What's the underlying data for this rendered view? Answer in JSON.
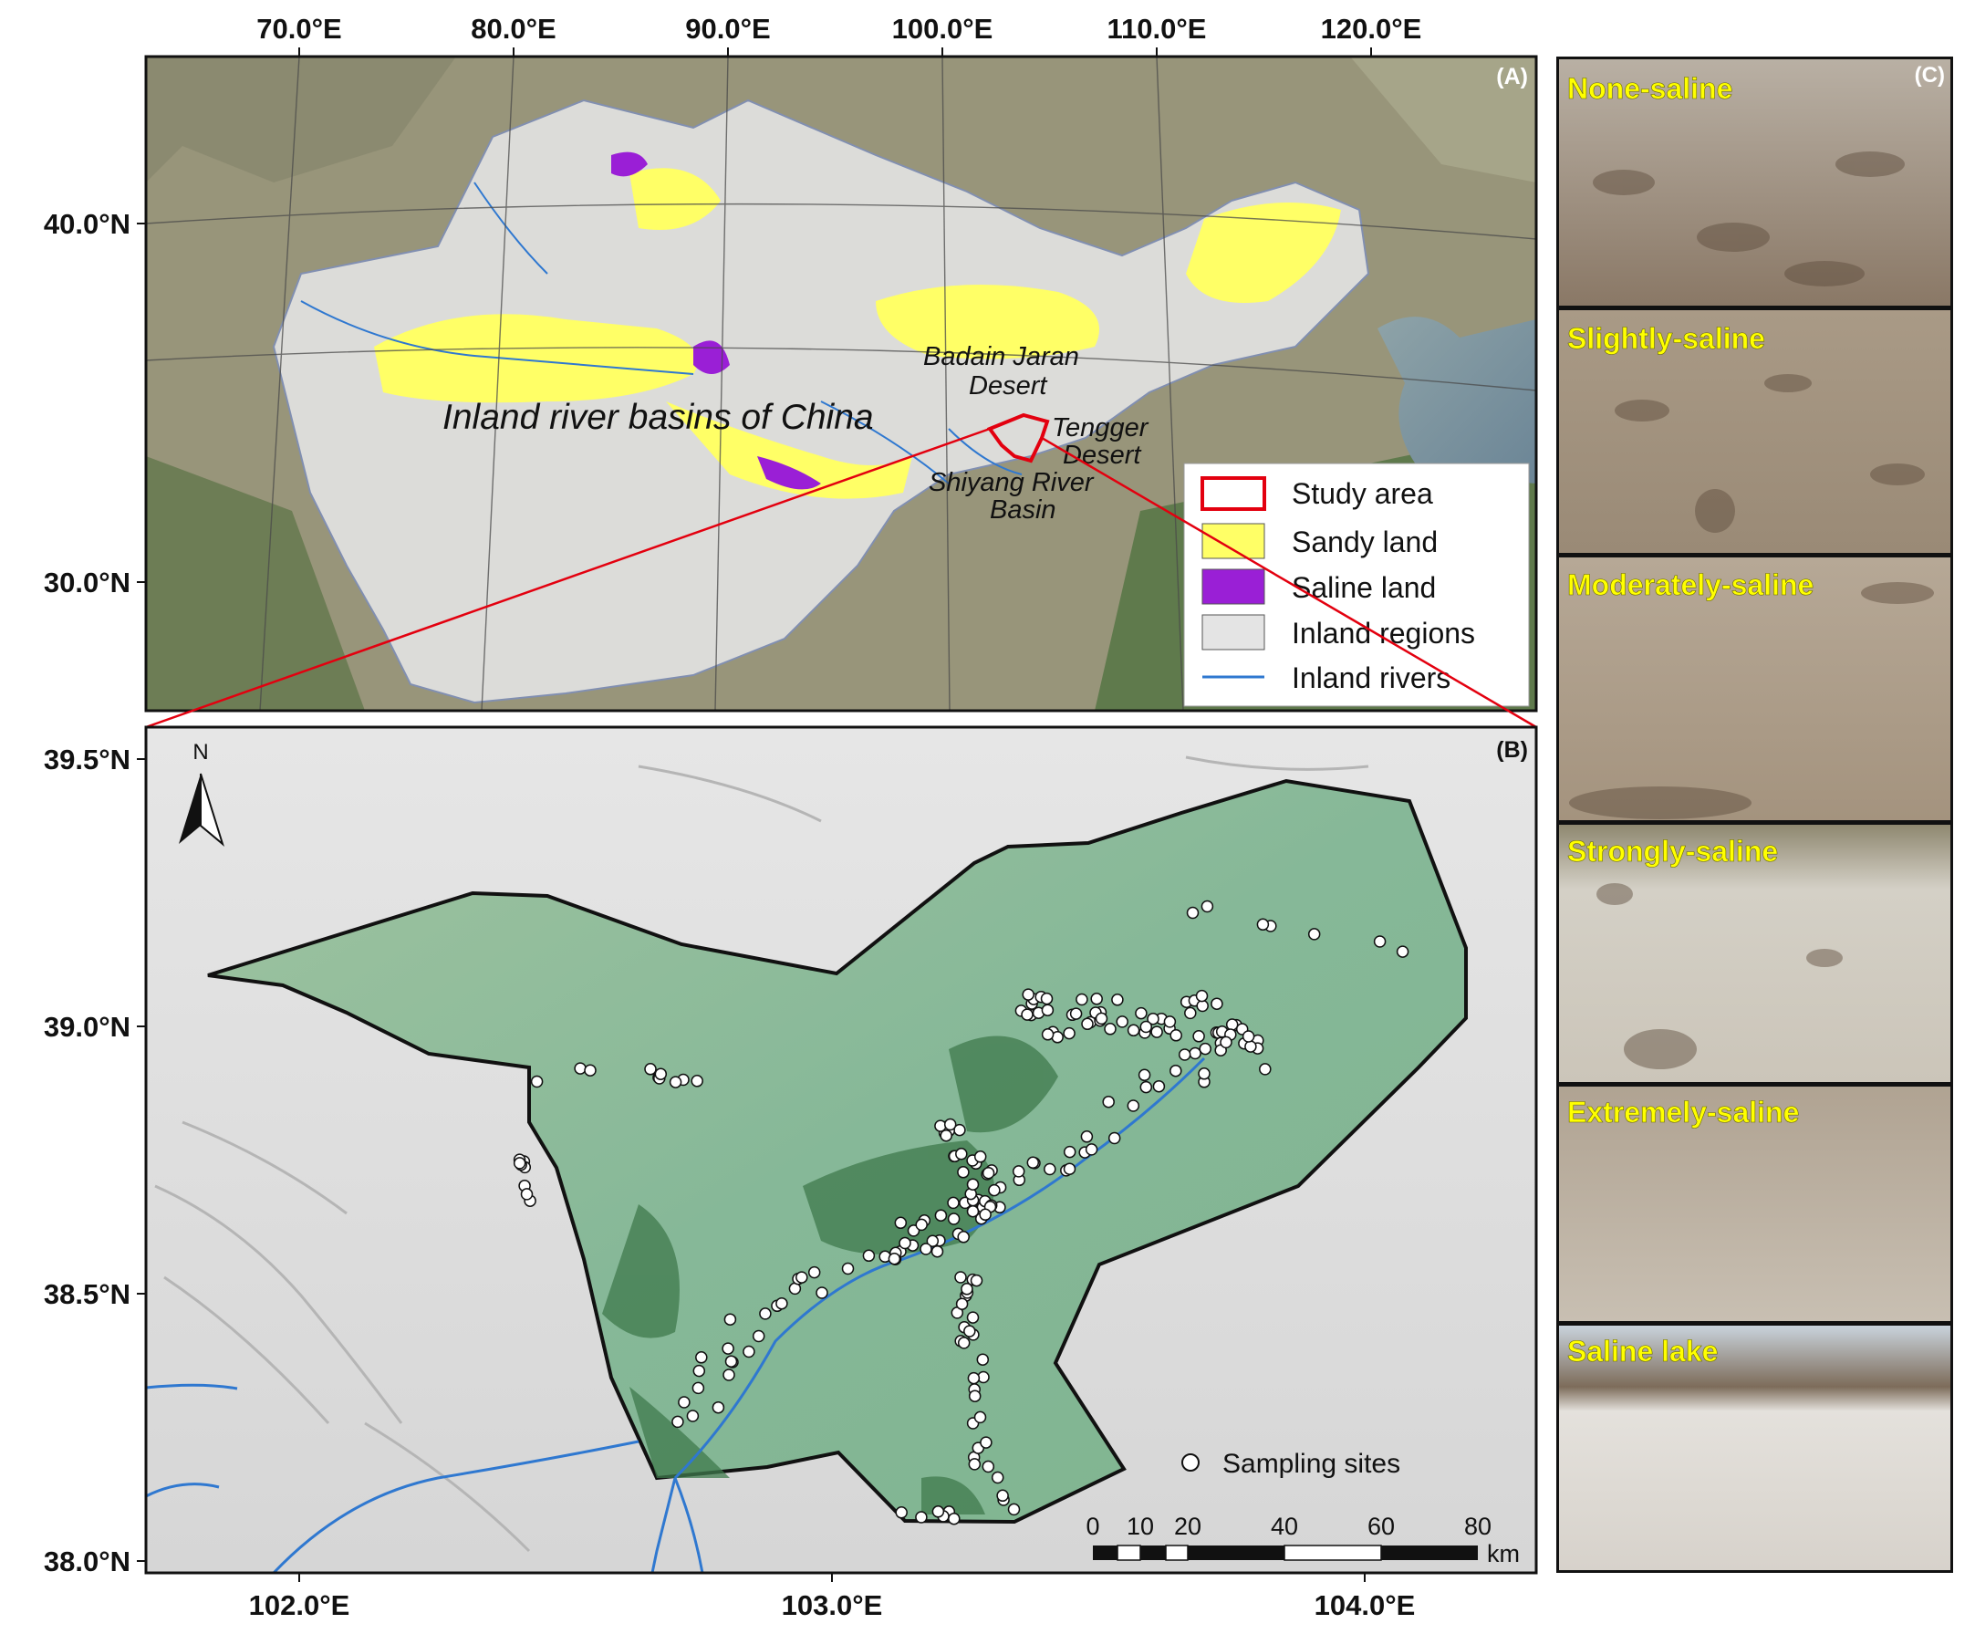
{
  "panelA": {
    "letter": "(A)",
    "top_labels": [
      "70.0°E",
      "80.0°E",
      "90.0°E",
      "100.0°E",
      "110.0°E",
      "120.0°E"
    ],
    "left_labels": [
      "40.0°N",
      "30.0°N"
    ],
    "title": "Inland river basins of China",
    "place_labels": {
      "badain_l1": "Badain Jaran",
      "badain_l2": "Desert",
      "tengger_l1": "Tengger",
      "tengger_l2": "Desert",
      "shiyang_l1": "Shiyang River",
      "shiyang_l2": "Basin"
    },
    "legend": [
      {
        "label": "Study area",
        "color": "#e3000f"
      },
      {
        "label": "Sandy land",
        "color": "#ffff66"
      },
      {
        "label": "Saline land",
        "color": "#9a1fd6"
      },
      {
        "label": "Inland regions",
        "color": "#e4e4e4"
      },
      {
        "label": "Inland rivers",
        "color": "#2f78d0"
      }
    ]
  },
  "panelB": {
    "letter": "(B)",
    "north": "N",
    "left_labels": [
      "39.5°N",
      "39.0°N",
      "38.5°N",
      "38.0°N"
    ],
    "bottom_labels": [
      "102.0°E",
      "103.0°E",
      "104.0°E"
    ],
    "legend_label": "Sampling sites",
    "scale_labels": [
      "0",
      "10",
      "20",
      "40",
      "60",
      "80"
    ],
    "scale_unit": "km"
  },
  "panelC": {
    "letter": "(C)",
    "photos": [
      "None-saline",
      "Slightly-saline",
      "Moderately-saline",
      "Strongly-saline",
      "Extremely-saline",
      "Saline lake"
    ]
  },
  "colors": {
    "sandy": "#ffff66",
    "saline": "#9a1fd6",
    "inland": "#e4e4e4",
    "river": "#2f78d0",
    "study": "#e3000f",
    "photo_label": "#ffff00"
  }
}
